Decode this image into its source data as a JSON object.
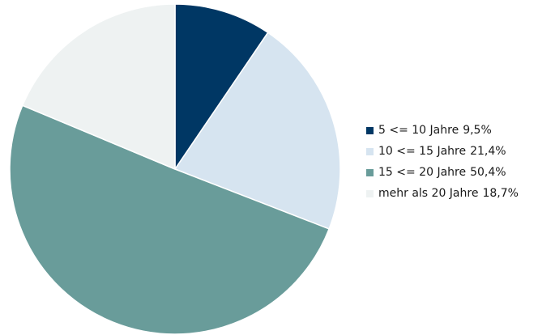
{
  "chart_data": {
    "type": "pie",
    "title": "",
    "legend_position": "right",
    "slices": [
      {
        "label": "5 <= 10 Jahre",
        "value_label": "9,5%",
        "value": 9.5,
        "color": "#003764"
      },
      {
        "label": "10 <= 15 Jahre",
        "value_label": "21,4%",
        "value": 21.4,
        "color": "#d6e4f0"
      },
      {
        "label": "15 <= 20 Jahre",
        "value_label": "50,4%",
        "value": 50.4,
        "color": "#699c9a"
      },
      {
        "label": "mehr als 20 Jahre",
        "value_label": "18,7%",
        "value": 18.7,
        "color": "#eef2f2"
      }
    ]
  }
}
